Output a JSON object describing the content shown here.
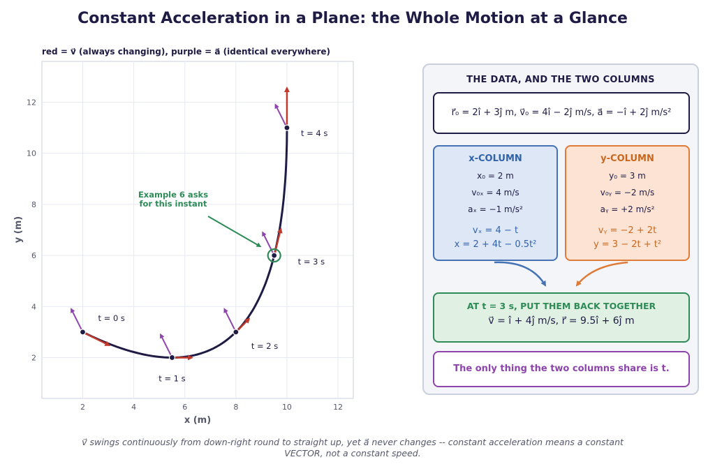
{
  "title": "Constant Acceleration in a Plane: the Whole Motion at a Glance",
  "caption": "v⃗ swings continuously from down-right round to straight up, yet a⃗ never changes -- constant acceleration means a constant VECTOR, not a constant speed.",
  "colors": {
    "path": "#1e1b44",
    "velocity": "#c0392b",
    "acceleration": "#8e44ad",
    "annotation": "#2e8b57",
    "x_column": "#4472b4",
    "y_column": "#e07b37"
  },
  "chart_data": {
    "type": "line",
    "subtitle": "red  = v⃗ (always changing),   purple = a⃗ (identical everywhere)",
    "xlabel": "x  (m)",
    "ylabel": "y  (m)",
    "xlim": [
      0.4,
      12.6
    ],
    "ylim": [
      0.4,
      13.6
    ],
    "xticks": [
      2,
      4,
      6,
      8,
      10,
      12
    ],
    "yticks": [
      2,
      4,
      6,
      8,
      10,
      12
    ],
    "grid": true,
    "trajectory": {
      "x0": 2,
      "y0": 3,
      "vx0": 4,
      "vy0": -2,
      "ax": -1,
      "ay": 2,
      "t_start": 0,
      "t_end": 4
    },
    "points": [
      {
        "t": 0,
        "x": 2,
        "y": 3,
        "vx": 4,
        "vy": -2,
        "label": "t = 0 s"
      },
      {
        "t": 1,
        "x": 5.5,
        "y": 2,
        "vx": 3,
        "vy": 0,
        "label": "t = 1 s"
      },
      {
        "t": 2,
        "x": 8,
        "y": 3,
        "vx": 2,
        "vy": 2,
        "label": "t = 2 s"
      },
      {
        "t": 3,
        "x": 9.5,
        "y": 6,
        "vx": 1,
        "vy": 4,
        "label": "t = 3 s",
        "highlight": true
      },
      {
        "t": 4,
        "x": 10,
        "y": 11,
        "vx": 0,
        "vy": 6,
        "label": "t = 4 s"
      }
    ],
    "acceleration": {
      "ax": -1,
      "ay": 2
    },
    "annotation": {
      "text": [
        "Example 6 asks",
        "for this instant"
      ],
      "target_t": 3
    }
  },
  "panel": {
    "title": "THE DATA, AND THE TWO COLUMNS",
    "data_line": "r⃗₀ = 2î + 3ĵ m,   v⃗₀ = 4î − 2ĵ m/s,   a⃗ = −î + 2ĵ m/s²",
    "x_column": {
      "title": "x-COLUMN",
      "rows": [
        "x₀ = 2 m",
        "v₀ₓ = 4 m/s",
        "aₓ = −1 m/s²"
      ],
      "eq1": "vₓ = 4 − t",
      "eq2": "x = 2 + 4t − 0.5t²"
    },
    "y_column": {
      "title": "y-COLUMN",
      "rows": [
        "y₀ = 3 m",
        "v₀ᵧ = −2 m/s",
        "aᵧ = +2 m/s²"
      ],
      "eq1": "vᵧ = −2 + 2t",
      "eq2": "y = 3 − 2t + t²"
    },
    "combined": {
      "title": "AT t = 3 s, PUT THEM BACK TOGETHER",
      "eq": "v⃗ = î + 4ĵ m/s,    r⃗ = 9.5î + 6ĵ m"
    },
    "footer": "The only thing the two columns share is t."
  }
}
